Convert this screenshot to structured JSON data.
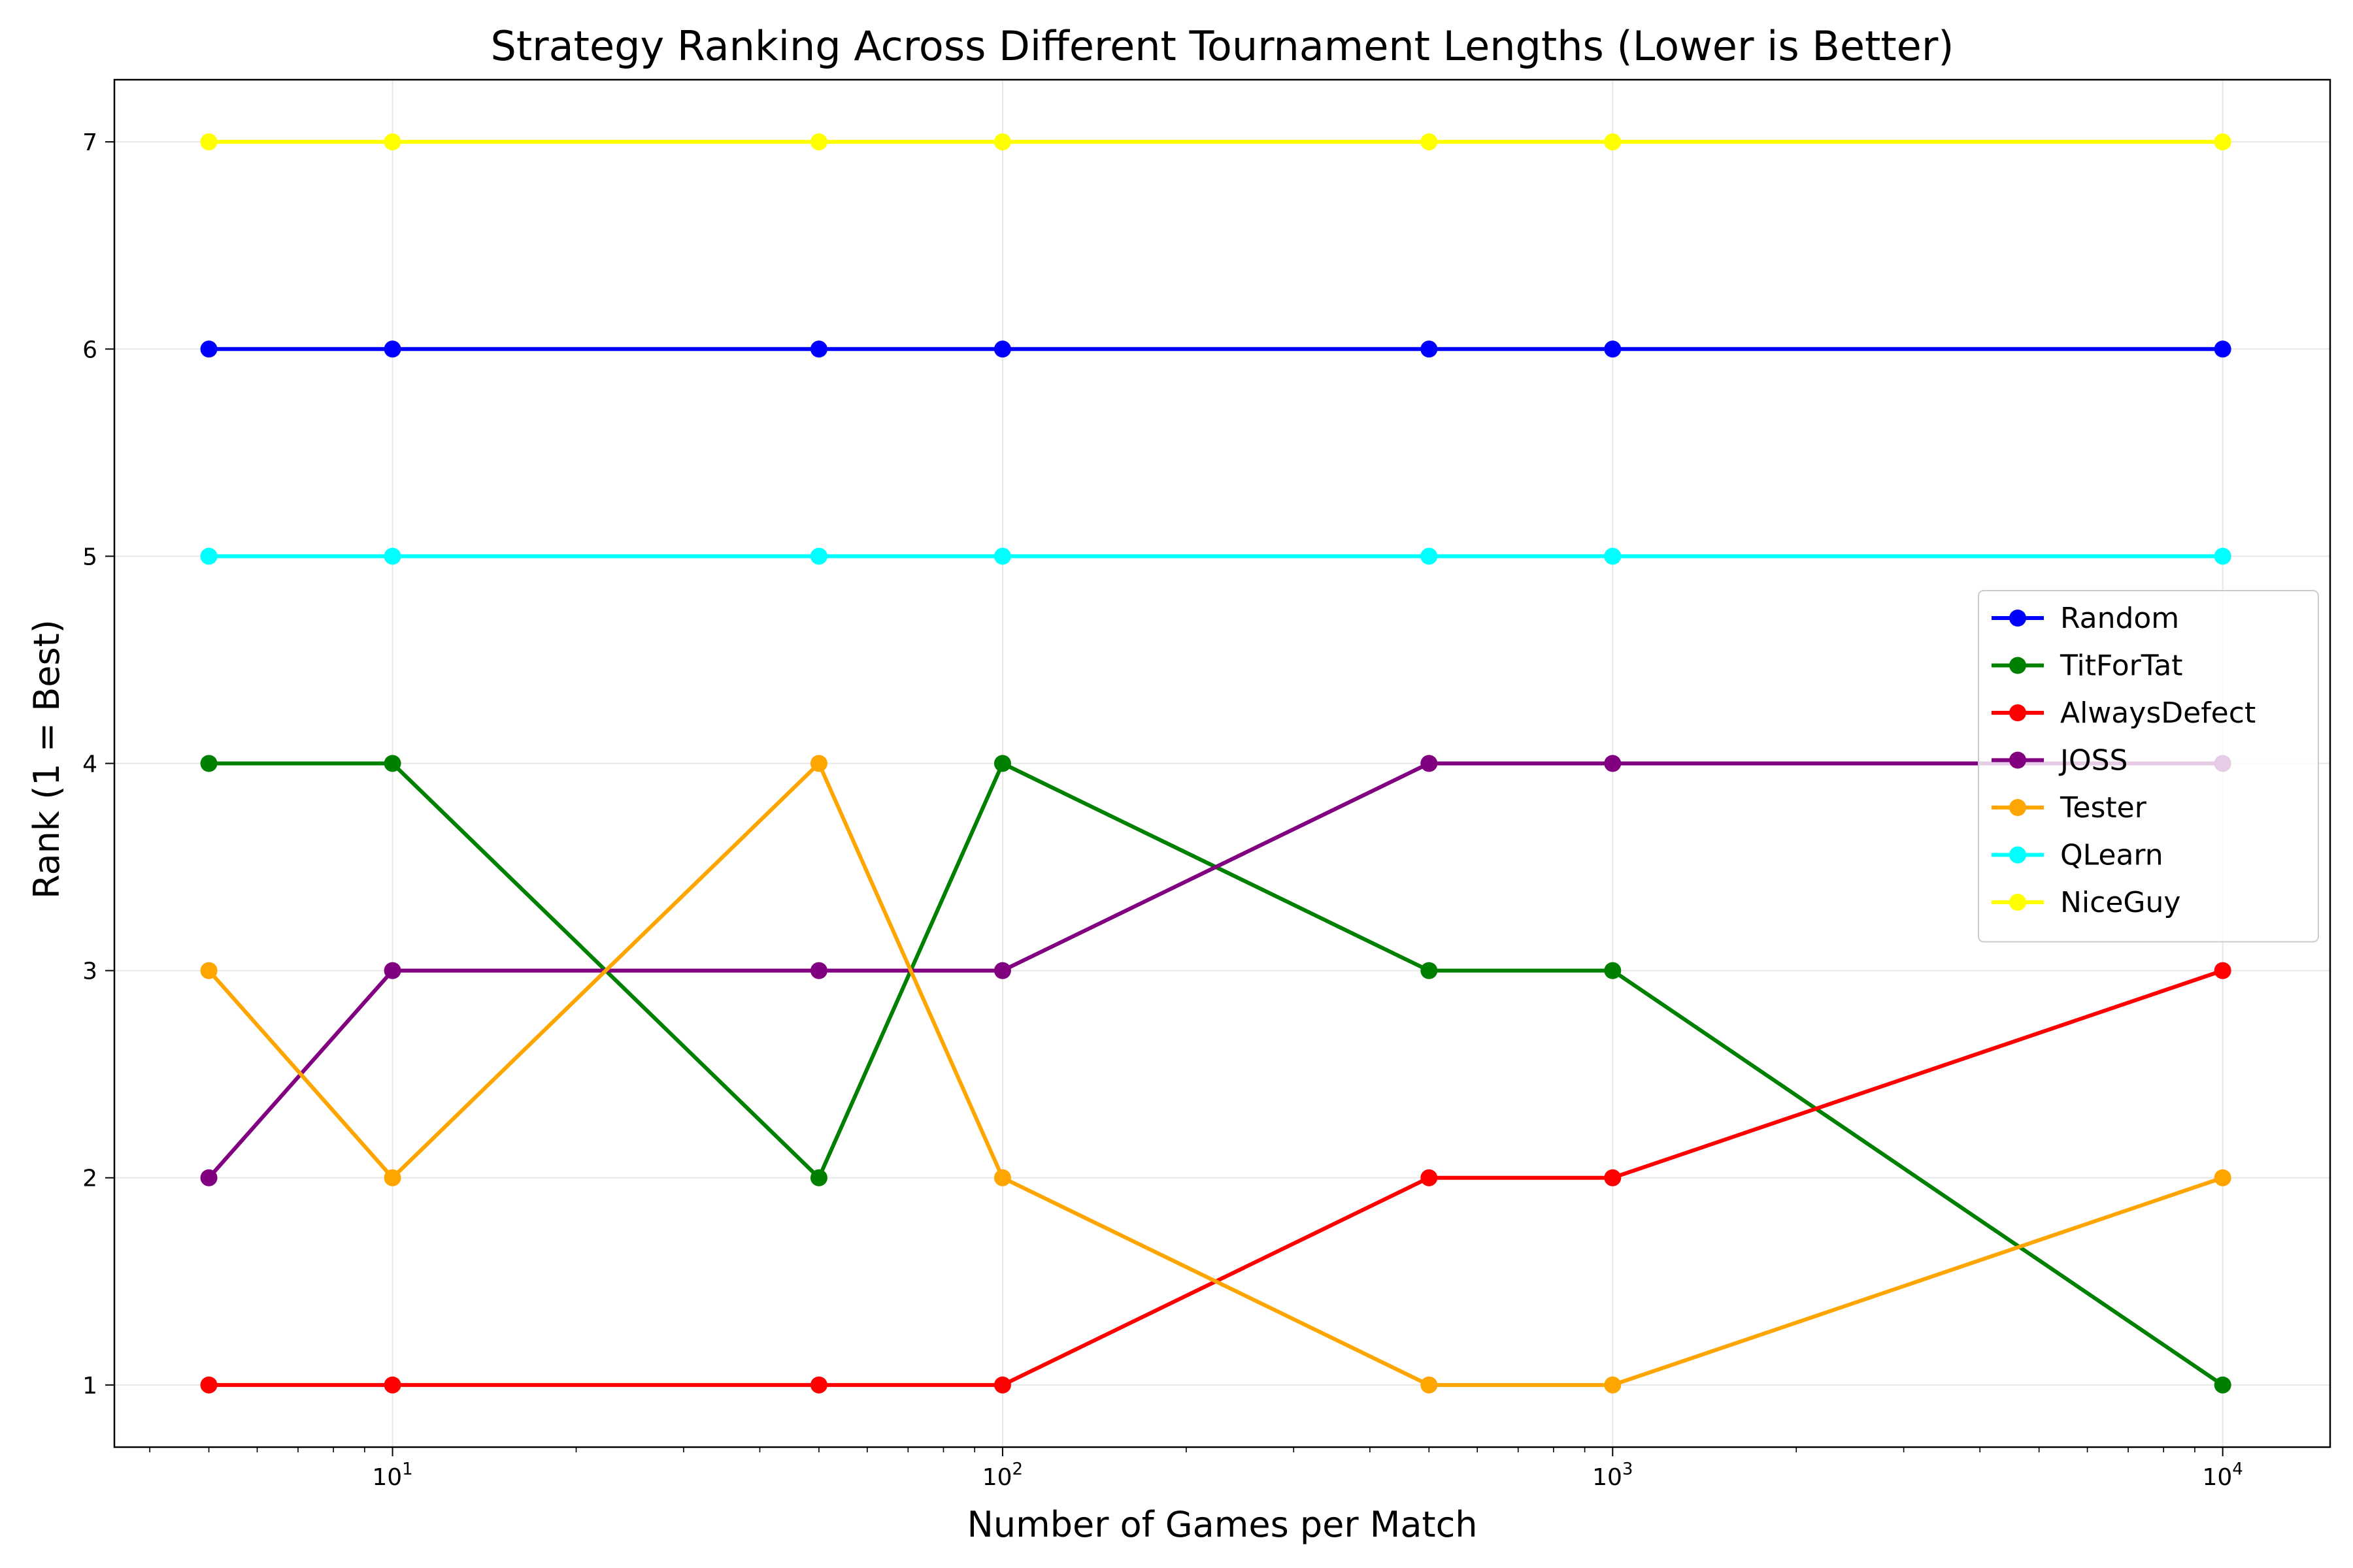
{
  "chart_data": {
    "type": "line",
    "title": "Strategy Ranking Across Different Tournament Lengths (Lower is Better)",
    "xlabel": "Number of Games per Match",
    "ylabel": "Rank (1 = Best)",
    "x_scale": "log",
    "xlim": [
      3.5,
      15000
    ],
    "ylim": [
      0.7,
      7.3
    ],
    "x": [
      5,
      10,
      50,
      100,
      500,
      1000,
      10000
    ],
    "xticks": [
      {
        "value": 10,
        "base": "10",
        "exp": "1"
      },
      {
        "value": 100,
        "base": "10",
        "exp": "2"
      },
      {
        "value": 1000,
        "base": "10",
        "exp": "3"
      },
      {
        "value": 10000,
        "base": "10",
        "exp": "4"
      }
    ],
    "yticks": [
      1,
      2,
      3,
      4,
      5,
      6,
      7
    ],
    "grid": true,
    "legend_position": "center-right",
    "series": [
      {
        "name": "Random",
        "color": "#0000ff",
        "values": [
          6,
          6,
          6,
          6,
          6,
          6,
          6
        ]
      },
      {
        "name": "TitForTat",
        "color": "#008000",
        "values": [
          4,
          4,
          2,
          4,
          3,
          3,
          1
        ]
      },
      {
        "name": "AlwaysDefect",
        "color": "#ff0000",
        "values": [
          1,
          1,
          1,
          1,
          2,
          2,
          3
        ]
      },
      {
        "name": "JOSS",
        "color": "#800080",
        "values": [
          2,
          3,
          3,
          3,
          4,
          4,
          4
        ]
      },
      {
        "name": "Tester",
        "color": "#ffa500",
        "values": [
          3,
          2,
          4,
          2,
          1,
          1,
          2
        ]
      },
      {
        "name": "QLearn",
        "color": "#00ffff",
        "values": [
          5,
          5,
          5,
          5,
          5,
          5,
          5
        ]
      },
      {
        "name": "NiceGuy",
        "color": "#ffff00",
        "values": [
          7,
          7,
          7,
          7,
          7,
          7,
          7
        ]
      }
    ]
  }
}
